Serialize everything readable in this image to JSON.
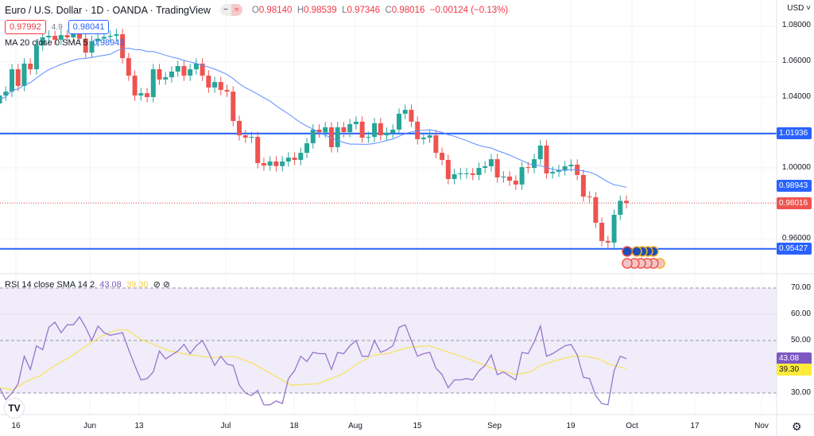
{
  "header": {
    "title": "Euro / U.S. Dollar · 1D · OANDA · TradingView",
    "toggle_left": "−",
    "toggle_right": "≈",
    "open_label": "O",
    "open": "0.98140",
    "high_label": "H",
    "high": "0.98539",
    "low_label": "L",
    "low": "0.97346",
    "close_label": "C",
    "close": "0.98016",
    "change": "−0.00124 (−0.13%)"
  },
  "trade": {
    "sell_price": "0.97992",
    "spread": "4.9",
    "buy_price": "0.98041"
  },
  "ma_legend": {
    "label": "MA 20 close 0 SMA 5",
    "value": "0.98943"
  },
  "rsi_legend": {
    "label": "RSI 14 close SMA 14 2",
    "rsi": "43.08",
    "sma": "39.30",
    "icon1": "⊘",
    "icon2": "⊘"
  },
  "price_axis": {
    "currency": "USD ˅",
    "ticks": [
      "1.08000",
      "1.06000",
      "1.04000",
      "1.00000",
      "0.96000"
    ],
    "tick_values": [
      1.08,
      1.06,
      1.04,
      1.0,
      0.96
    ]
  },
  "price_tags": {
    "line_high": "1.01936",
    "ma": "0.98943",
    "last": "0.98016",
    "line_low": "0.95427"
  },
  "rsi_axis": {
    "ticks": [
      "70.00",
      "60.00",
      "50.00",
      "30.00"
    ],
    "rsi_tag": "43.08",
    "sma_tag": "39.30"
  },
  "time_axis": [
    "16",
    "Jun",
    "13",
    "Jul",
    "18",
    "Aug",
    "15",
    "Sep",
    "19",
    "Oct",
    "17",
    "Nov"
  ],
  "logo": "TV",
  "colors": {
    "up": "#26a69a",
    "down": "#ef5350",
    "ma": "#5b8cff",
    "hline": "#2962ff",
    "rsi": "#7e57c2",
    "rsi_sma": "#f7e35a",
    "rsi_band": "#f0ecf9"
  },
  "chart_data": {
    "type": "candlestick",
    "hlines": [
      1.01936,
      0.95427
    ],
    "first_open": 1.0521,
    "closes": [
      1.0364,
      1.0409,
      1.0431,
      1.0557,
      1.0463,
      1.0589,
      1.0557,
      1.0692,
      1.0737,
      1.0746,
      1.0724,
      1.075,
      1.0737,
      1.076,
      1.073,
      1.0651,
      1.0716,
      1.073,
      1.074,
      1.0746,
      1.0755,
      1.062,
      1.0521,
      1.0409,
      1.0422,
      1.04,
      1.0557,
      1.0499,
      1.0512,
      1.0544,
      1.0575,
      1.0521,
      1.0557,
      1.0589,
      1.0521,
      1.0454,
      1.0485,
      1.044,
      1.0431,
      1.0265,
      1.0184,
      1.0171,
      1.0175,
      1.0027,
      1.0013,
      1.0036,
      1.001,
      1.0036,
      1.0058,
      1.0045,
      1.0085,
      1.0139,
      1.0216,
      1.02,
      1.0229,
      1.0117,
      1.0229,
      1.0202,
      1.0247,
      1.0261,
      1.0171,
      1.0175,
      1.0252,
      1.0184,
      1.0198,
      1.0216,
      1.0306,
      1.0328,
      1.0261,
      1.0162,
      1.0171,
      1.0184,
      1.0085,
      1.0045,
      0.9937,
      0.9964,
      0.9969,
      0.9969,
      0.996,
      1.0,
      1.0009,
      1.0049,
      0.9946,
      0.9951,
      0.9928,
      0.9906,
      1.0004,
      1.0,
      1.0049,
      1.0126,
      0.9969,
      0.9978,
      0.9987,
      1.0009,
      1.0018,
      0.996,
      0.9838,
      0.9834,
      0.969,
      0.9587,
      0.9578,
      0.9735,
      0.9814,
      0.98016
    ],
    "ma20_last": 0.98943,
    "rsi": [
      32,
      27.5,
      30,
      33.5,
      44,
      39,
      48,
      46.5,
      55,
      57,
      53,
      56,
      56,
      59,
      55,
      50,
      55.5,
      53,
      52,
      52.5,
      53,
      46.5,
      40.5,
      35,
      35.5,
      38,
      46,
      43,
      44.5,
      46,
      48.5,
      45,
      48,
      50,
      45.5,
      40.5,
      44,
      41,
      40.5,
      33,
      30,
      29,
      31,
      25.5,
      25.5,
      27,
      26,
      35.5,
      38.5,
      44,
      42,
      45.5,
      45,
      45,
      39,
      45.5,
      45,
      48,
      50,
      44,
      44,
      50,
      45.5,
      46.5,
      48,
      55,
      56,
      50,
      44,
      45,
      45.5,
      39.5,
      37,
      32,
      35,
      35,
      35.5,
      35,
      38.5,
      40.5,
      44.5,
      37,
      38,
      36.5,
      35,
      45.5,
      45,
      49.5,
      55.5,
      44,
      45,
      46.5,
      48,
      48.5,
      44.5,
      36,
      35.5,
      29,
      26,
      25.5,
      38.5,
      44,
      43.08
    ],
    "rsi_sma": [
      [
        0,
        32
      ],
      [
        2.2,
        31.3
      ],
      [
        4.3,
        34.5
      ],
      [
        6.5,
        36.5
      ],
      [
        8.6,
        40
      ],
      [
        11.6,
        44
      ],
      [
        14.7,
        49
      ],
      [
        16.8,
        52
      ],
      [
        19,
        54
      ],
      [
        20.7,
        54
      ],
      [
        22.9,
        50.5
      ],
      [
        25,
        48.5
      ],
      [
        27.6,
        46
      ],
      [
        31,
        44.5
      ],
      [
        32.8,
        44
      ],
      [
        34.5,
        43.5
      ],
      [
        37.5,
        44
      ],
      [
        38.8,
        43.5
      ],
      [
        41.4,
        41
      ],
      [
        44,
        37.5
      ],
      [
        47.4,
        33
      ],
      [
        49.6,
        33.3
      ],
      [
        51.7,
        33.5
      ],
      [
        53.9,
        35.5
      ],
      [
        56,
        37.5
      ],
      [
        58,
        41
      ],
      [
        60.8,
        44.5
      ],
      [
        63,
        45
      ],
      [
        65.1,
        46.5
      ],
      [
        66.8,
        47.5
      ],
      [
        69.9,
        48
      ],
      [
        72.4,
        46
      ],
      [
        75,
        44
      ],
      [
        78,
        41.5
      ],
      [
        80.6,
        39
      ],
      [
        84,
        37
      ],
      [
        86.3,
        38
      ],
      [
        88,
        40.5
      ],
      [
        90.6,
        42.5
      ],
      [
        93.1,
        44
      ],
      [
        95.3,
        44
      ],
      [
        97.4,
        43
      ],
      [
        99.2,
        41
      ],
      [
        101.9,
        39.3
      ]
    ],
    "rsi_levels": [
      70,
      50,
      30
    ],
    "price_range": [
      0.945,
      1.09
    ],
    "rsi_range": [
      20,
      75
    ]
  }
}
